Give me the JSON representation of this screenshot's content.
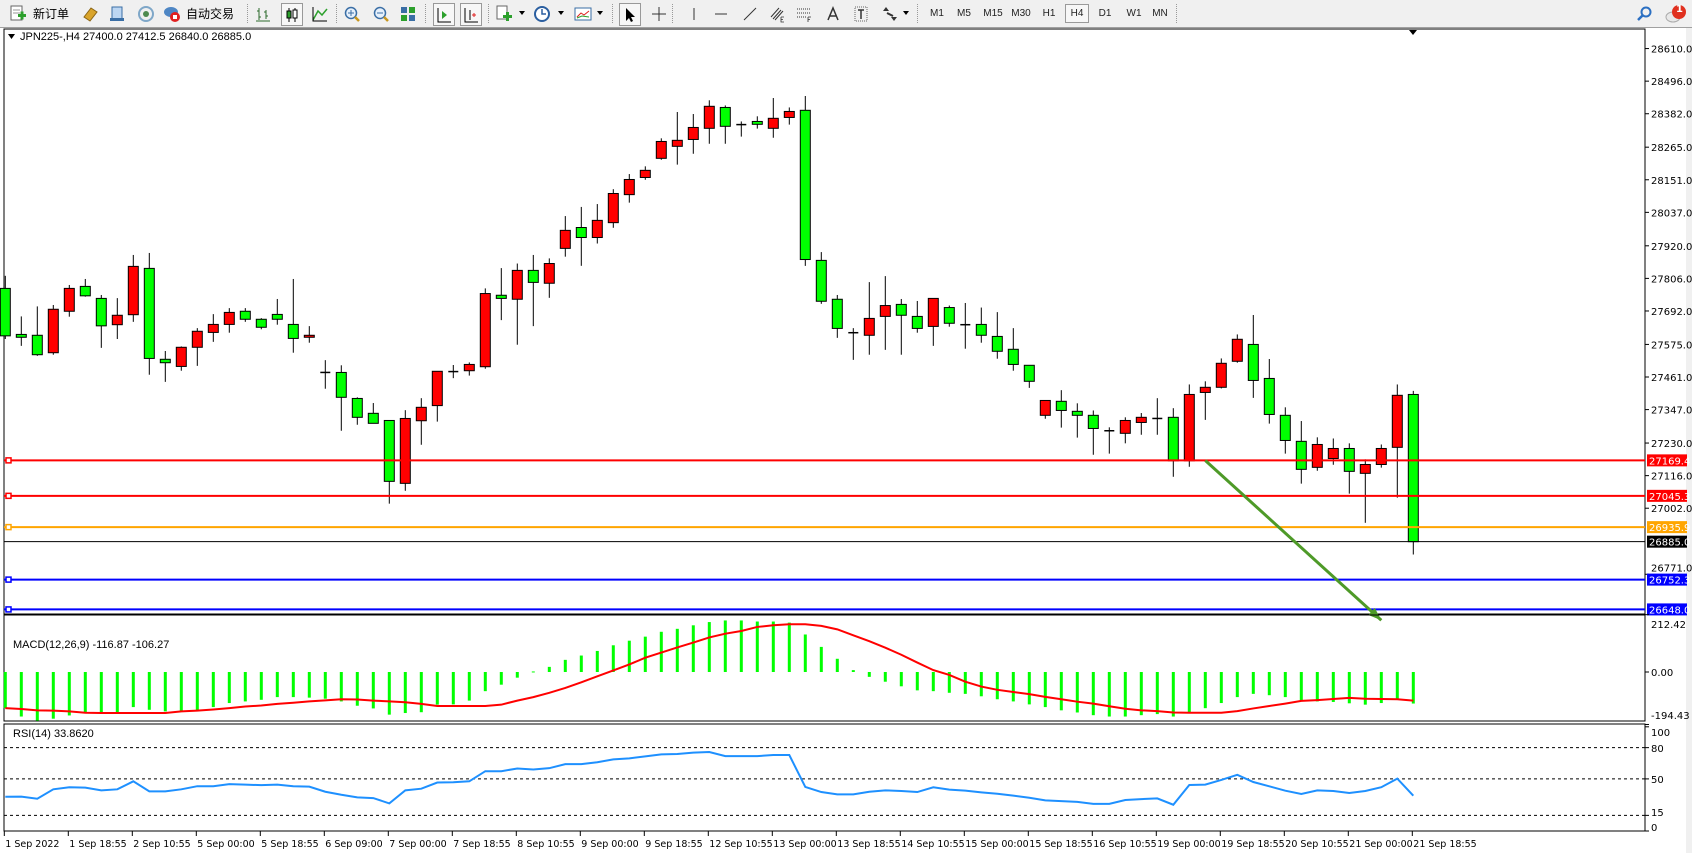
{
  "toolbar": {
    "new_order_label": "新订单",
    "auto_trading_label": "自动交易",
    "timeframes": [
      "M1",
      "M5",
      "M15",
      "M30",
      "H1",
      "H4",
      "D1",
      "W1",
      "MN"
    ],
    "active_timeframe": "H4",
    "notification_count": "1",
    "icons": [
      "new-order-icon",
      "history-center-icon",
      "strategy-tester-icon",
      "signals-icon",
      "auto-trading-icon",
      "bar-chart-icon",
      "candlestick-icon",
      "line-chart-icon",
      "zoom-in-icon",
      "zoom-out-icon",
      "tile-windows-icon",
      "auto-scroll-icon",
      "chart-shift-icon",
      "indicators-icon",
      "periods-icon",
      "templates-icon",
      "cursor-icon",
      "crosshair-icon",
      "vertical-line-icon",
      "horizontal-line-icon",
      "trendline-icon",
      "equidistant-channel-icon",
      "fibonacci-icon",
      "text-icon",
      "text-label-icon",
      "arrows-icon",
      "search-icon",
      "notification-icon"
    ]
  },
  "chart": {
    "header": "JPN225-,H4  27400.0 27412.5 26840.0 26885.0",
    "price_ticks": [
      "28610.0",
      "28496.0",
      "28382.0",
      "28265.0",
      "28151.0",
      "28037.0",
      "27920.0",
      "27806.0",
      "27692.0",
      "27575.0",
      "27461.0",
      "27347.0",
      "27230.0",
      "27116.0",
      "27002.0",
      "26771.0"
    ],
    "levels": [
      {
        "price": 27169.4,
        "label": "27169.4",
        "color": "#FF0000"
      },
      {
        "price": 27045.3,
        "label": "27045.3",
        "color": "#FF0000"
      },
      {
        "price": 26935.9,
        "label": "26935.9",
        "color": "#FFA500"
      },
      {
        "price": 26885.0,
        "label": "26885.0",
        "color": "#000000"
      },
      {
        "price": 26752.3,
        "label": "26752.3",
        "color": "#0000FF"
      },
      {
        "price": 26648.0,
        "label": "26648.0",
        "color": "#0000FF"
      }
    ],
    "arrow": {
      "color": "#4E9A28",
      "from": {
        "bar": 75,
        "price": 27169
      },
      "to": {
        "bar": 86,
        "price": 26610
      }
    },
    "bull_color": "#FF0000",
    "bear_color": "#00FF00",
    "x_labels": [
      "1 Sep 2022",
      "1 Sep 18:55",
      "2 Sep 10:55",
      "5 Sep 00:00",
      "5 Sep 18:55",
      "6 Sep 09:00",
      "7 Sep 00:00",
      "7 Sep 18:55",
      "8 Sep 10:55",
      "9 Sep 00:00",
      "9 Sep 18:55",
      "12 Sep 10:55",
      "13 Sep 00:00",
      "13 Sep 18:55",
      "14 Sep 10:55",
      "15 Sep 00:00",
      "15 Sep 18:55",
      "16 Sep 10:55",
      "19 Sep 00:00",
      "19 Sep 18:55",
      "20 Sep 10:55",
      "21 Sep 00:00",
      "21 Sep 18:55"
    ]
  },
  "macd": {
    "label": "MACD(12,26,9) -116.87 -106.27",
    "ticks": [
      "212.42",
      "0.00",
      "-194.43"
    ],
    "hist_color": "#00FF00",
    "signal_color": "#FF0000"
  },
  "rsi": {
    "label": "RSI(14) 33.8620",
    "ticks": [
      "100",
      "80",
      "50",
      "15",
      "0"
    ],
    "color": "#1E90FF"
  },
  "chart_data": [
    {
      "type": "candlestick",
      "symbol": "JPN225-",
      "timeframe": "H4",
      "ylim": [
        26636,
        28674
      ],
      "ohlc": [
        [
          27771,
          27815,
          27594,
          27605
        ],
        [
          27610,
          27673,
          27570,
          27600
        ],
        [
          27607,
          27708,
          27535,
          27539
        ],
        [
          27546,
          27713,
          27539,
          27698
        ],
        [
          27691,
          27783,
          27672,
          27771
        ],
        [
          27778,
          27804,
          27742,
          27745
        ],
        [
          27736,
          27748,
          27563,
          27640
        ],
        [
          27644,
          27737,
          27594,
          27677
        ],
        [
          27679,
          27888,
          27654,
          27848
        ],
        [
          27841,
          27895,
          27469,
          27526
        ],
        [
          27523,
          27552,
          27444,
          27511
        ],
        [
          27498,
          27568,
          27483,
          27565
        ],
        [
          27565,
          27632,
          27500,
          27621
        ],
        [
          27617,
          27681,
          27584,
          27645
        ],
        [
          27645,
          27702,
          27616,
          27687
        ],
        [
          27691,
          27702,
          27654,
          27663
        ],
        [
          27663,
          27667,
          27628,
          27635
        ],
        [
          27680,
          27734,
          27644,
          27663
        ],
        [
          27645,
          27804,
          27546,
          27596
        ],
        [
          27600,
          27639,
          27581,
          27607
        ],
        [
          27477,
          27520,
          27420,
          27477
        ],
        [
          27477,
          27502,
          27273,
          27390
        ],
        [
          27386,
          27390,
          27294,
          27320
        ],
        [
          27334,
          27370,
          27299,
          27299
        ],
        [
          27309,
          27309,
          27018,
          27096
        ],
        [
          27089,
          27345,
          27063,
          27316
        ],
        [
          27308,
          27387,
          27224,
          27355
        ],
        [
          27361,
          27481,
          27305,
          27481
        ],
        [
          27480,
          27503,
          27457,
          27480
        ],
        [
          27483,
          27512,
          27466,
          27505
        ],
        [
          27497,
          27771,
          27490,
          27753
        ],
        [
          27747,
          27842,
          27660,
          27736
        ],
        [
          27733,
          27858,
          27574,
          27834
        ],
        [
          27834,
          27888,
          27639,
          27792
        ],
        [
          27789,
          27876,
          27738,
          27858
        ],
        [
          27911,
          28024,
          27882,
          27974
        ],
        [
          27984,
          28056,
          27850,
          27949
        ],
        [
          27949,
          28066,
          27928,
          28009
        ],
        [
          28001,
          28118,
          27983,
          28103
        ],
        [
          28099,
          28171,
          28071,
          28152
        ],
        [
          28159,
          28198,
          28151,
          28184
        ],
        [
          28226,
          28296,
          28221,
          28285
        ],
        [
          28268,
          28388,
          28204,
          28289
        ],
        [
          28292,
          28381,
          28242,
          28334
        ],
        [
          28331,
          28429,
          28277,
          28408
        ],
        [
          28404,
          28411,
          28277,
          28338
        ],
        [
          28344,
          28355,
          28302,
          28344
        ],
        [
          28355,
          28373,
          28330,
          28345
        ],
        [
          28331,
          28437,
          28298,
          28366
        ],
        [
          28369,
          28404,
          28344,
          28390
        ],
        [
          28394,
          28444,
          27850,
          27872
        ],
        [
          27869,
          27898,
          27717,
          27726
        ],
        [
          27733,
          27748,
          27598,
          27631
        ],
        [
          27616,
          27632,
          27521,
          27616
        ],
        [
          27607,
          27793,
          27539,
          27666
        ],
        [
          27673,
          27814,
          27556,
          27711
        ],
        [
          27715,
          27734,
          27539,
          27677
        ],
        [
          27673,
          27727,
          27616,
          27631
        ],
        [
          27638,
          27736,
          27570,
          27736
        ],
        [
          27704,
          27711,
          27637,
          27649
        ],
        [
          27644,
          27720,
          27560,
          27644
        ],
        [
          27645,
          27704,
          27581,
          27607
        ],
        [
          27603,
          27688,
          27525,
          27551
        ],
        [
          27558,
          27632,
          27483,
          27505
        ],
        [
          27502,
          27502,
          27423,
          27446
        ],
        [
          27327,
          27379,
          27315,
          27379
        ],
        [
          27376,
          27415,
          27284,
          27344
        ],
        [
          27341,
          27369,
          27249,
          27327
        ],
        [
          27327,
          27344,
          27189,
          27281
        ],
        [
          27273,
          27285,
          27193,
          27273
        ],
        [
          27264,
          27320,
          27229,
          27309
        ],
        [
          27302,
          27335,
          27259,
          27320
        ],
        [
          27316,
          27387,
          27259,
          27316
        ],
        [
          27320,
          27352,
          27112,
          27168
        ],
        [
          27168,
          27435,
          27147,
          27400
        ],
        [
          27407,
          27446,
          27311,
          27425
        ],
        [
          27425,
          27526,
          27421,
          27509
        ],
        [
          27516,
          27610,
          27511,
          27593
        ],
        [
          27575,
          27678,
          27388,
          27449
        ],
        [
          27456,
          27524,
          27298,
          27330
        ],
        [
          27327,
          27355,
          27193,
          27239
        ],
        [
          27236,
          27307,
          27088,
          27138
        ],
        [
          27145,
          27250,
          27133,
          27225
        ],
        [
          27176,
          27246,
          27154,
          27211
        ],
        [
          27211,
          27229,
          27053,
          27131
        ],
        [
          27124,
          27173,
          26951,
          27155
        ],
        [
          27155,
          27225,
          27144,
          27211
        ],
        [
          27215,
          27435,
          27039,
          27397
        ],
        [
          27400,
          27412.5,
          26840,
          26885
        ]
      ]
    },
    {
      "type": "bar+line",
      "name": "MACD(12,26,9)",
      "ylim": [
        -194.43,
        212.42
      ],
      "macd": [
        -134,
        -165,
        -180,
        -173,
        -161,
        -152,
        -150,
        -150,
        -130,
        -140,
        -146,
        -146,
        -142,
        -130,
        -115,
        -109,
        -103,
        -93,
        -93,
        -95,
        -99,
        -109,
        -125,
        -135,
        -158,
        -152,
        -149,
        -121,
        -120,
        -106,
        -71,
        -47,
        -21,
        2,
        19,
        45,
        61,
        78,
        99,
        116,
        131,
        149,
        160,
        173,
        185,
        191,
        191,
        187,
        187,
        183,
        139,
        93,
        49,
        7,
        -18,
        -36,
        -53,
        -68,
        -71,
        -77,
        -81,
        -90,
        -101,
        -109,
        -120,
        -130,
        -142,
        -150,
        -160,
        -165,
        -165,
        -160,
        -156,
        -165,
        -150,
        -134,
        -115,
        -93,
        -81,
        -86,
        -93,
        -109,
        -109,
        -111,
        -116,
        -121,
        -115,
        -99,
        -116.87
      ],
      "signal": [
        -134,
        -137,
        -142,
        -143,
        -146,
        -151,
        -152,
        -152,
        -152,
        -152,
        -152,
        -146,
        -143,
        -139,
        -134,
        -128,
        -124,
        -118,
        -114,
        -109,
        -105,
        -101,
        -102,
        -106,
        -109,
        -112,
        -118,
        -126,
        -126,
        -126,
        -126,
        -121,
        -106,
        -93,
        -77,
        -59,
        -38,
        -16,
        6,
        28,
        53,
        72,
        91,
        109,
        128,
        142,
        152,
        167,
        173,
        177,
        177,
        171,
        158,
        136,
        114,
        90,
        64,
        35,
        7,
        -11,
        -36,
        -54,
        -66,
        -74,
        -82,
        -92,
        -101,
        -110,
        -117,
        -127,
        -136,
        -142,
        -145,
        -150,
        -151,
        -151,
        -151,
        -145,
        -135,
        -126,
        -117,
        -107,
        -104,
        -100,
        -96,
        -99,
        -100,
        -101,
        -106.27
      ]
    },
    {
      "type": "line",
      "name": "RSI(14)",
      "ylim": [
        0,
        100
      ],
      "levels": [
        80,
        50,
        15
      ],
      "values": [
        32.9,
        33,
        31,
        40,
        42,
        41.6,
        39,
        40,
        47.7,
        38,
        38,
        40,
        43,
        43,
        45,
        44.5,
        44,
        44.5,
        43,
        42.6,
        37.7,
        34.8,
        32.3,
        31.6,
        26.5,
        39,
        40.6,
        46.5,
        46.8,
        47.7,
        57.4,
        57.4,
        60,
        59,
        60.3,
        64.2,
        64.2,
        66,
        68.7,
        69.7,
        71.6,
        73.5,
        73.9,
        75.2,
        75.8,
        71.9,
        71.9,
        71.9,
        72.9,
        72.9,
        42.3,
        37.4,
        35.2,
        35.2,
        37.7,
        39,
        38.4,
        37.4,
        42,
        39.7,
        38.7,
        37.1,
        35.8,
        33.9,
        31.9,
        29.4,
        28.7,
        28,
        26,
        26,
        29.7,
        30.6,
        31.3,
        25.2,
        44.2,
        44.5,
        49,
        53.9,
        47,
        42.9,
        38.7,
        35.5,
        39,
        38.4,
        36.5,
        38.4,
        42,
        50.3,
        33.862
      ]
    }
  ]
}
